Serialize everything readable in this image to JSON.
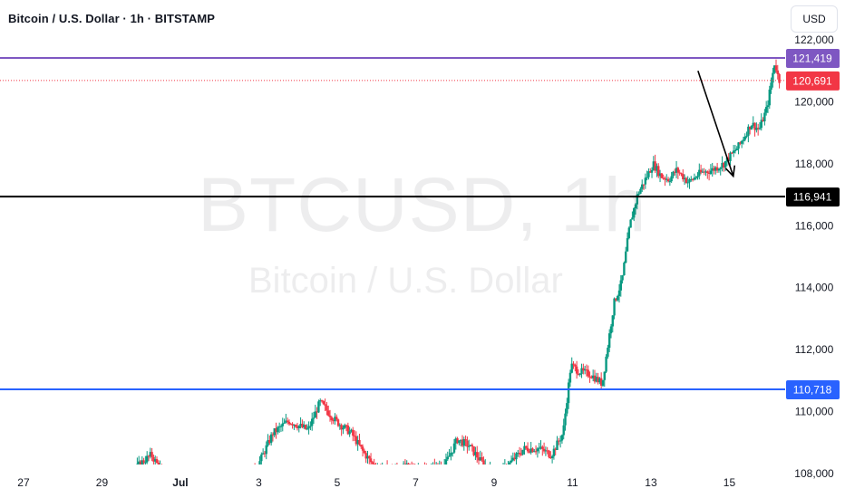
{
  "header": {
    "symbol_title": "Bitcoin / U.S. Dollar · 1h · BITSTAMP",
    "currency_button": "USD"
  },
  "watermark": {
    "ticker": "BTCUSD, 1h",
    "name": "Bitcoin / U.S. Dollar"
  },
  "colors": {
    "up": "#089981",
    "down": "#f23645",
    "resistance_line": "#7e57c2",
    "current_price_line": "#f23645",
    "support_line": "#000000",
    "lower_line": "#2962ff"
  },
  "chart_data": {
    "type": "candlestick",
    "title": "Bitcoin / U.S. Dollar · 1h · BITSTAMP",
    "interval": "1h",
    "ylim": [
      107500,
      122500
    ],
    "y_ticks": [
      "108,000",
      "110,000",
      "112,000",
      "114,000",
      "116,000",
      "118,000",
      "120,000",
      "122,000"
    ],
    "x_ticks": [
      "27",
      "29",
      "Jul",
      "3",
      "5",
      "7",
      "9",
      "11",
      "13",
      "15"
    ],
    "x_range_days": [
      26.4,
      46.4
    ],
    "grid": false,
    "price_levels": [
      {
        "label": "121,419",
        "value": 121419,
        "style": "solid",
        "role": "resistance"
      },
      {
        "label": "120,691",
        "value": 120691,
        "style": "dotted",
        "role": "last-price"
      },
      {
        "label": "116,941",
        "value": 116941,
        "style": "solid",
        "role": "support"
      },
      {
        "label": "110,718",
        "value": 110718,
        "style": "solid",
        "role": "level"
      }
    ],
    "annotation": {
      "type": "arrow",
      "direction": "down",
      "from": {
        "day": 44.2,
        "price": 121000
      },
      "to": {
        "day": 45.1,
        "price": 117600
      }
    },
    "price_path": [
      [
        26.4,
        107800
      ],
      [
        26.8,
        108100
      ],
      [
        27.2,
        107900
      ],
      [
        27.6,
        107700
      ],
      [
        28.0,
        107650
      ],
      [
        28.5,
        107700
      ],
      [
        29.0,
        107750
      ],
      [
        29.3,
        107600
      ],
      [
        29.7,
        107800
      ],
      [
        30.0,
        108300
      ],
      [
        30.3,
        108600
      ],
      [
        30.6,
        108000
      ],
      [
        30.9,
        107700
      ],
      [
        31.2,
        107750
      ],
      [
        31.6,
        107700
      ],
      [
        32.0,
        107650
      ],
      [
        32.5,
        107600
      ],
      [
        33.0,
        108200
      ],
      [
        33.4,
        109300
      ],
      [
        33.8,
        109700
      ],
      [
        34.3,
        109400
      ],
      [
        34.6,
        110300
      ],
      [
        35.0,
        109700
      ],
      [
        35.4,
        109300
      ],
      [
        35.7,
        108700
      ],
      [
        36.0,
        108200
      ],
      [
        36.4,
        108100
      ],
      [
        36.8,
        108200
      ],
      [
        37.3,
        108100
      ],
      [
        37.8,
        108300
      ],
      [
        38.1,
        109100
      ],
      [
        38.4,
        108900
      ],
      [
        38.7,
        108400
      ],
      [
        39.1,
        107900
      ],
      [
        39.5,
        108400
      ],
      [
        39.8,
        108800
      ],
      [
        40.2,
        108800
      ],
      [
        40.5,
        108600
      ],
      [
        40.8,
        109300
      ],
      [
        41.0,
        111500
      ],
      [
        41.2,
        111300
      ],
      [
        41.5,
        111200
      ],
      [
        41.8,
        110900
      ],
      [
        42.1,
        113500
      ],
      [
        42.3,
        114200
      ],
      [
        42.5,
        116000
      ],
      [
        42.7,
        117000
      ],
      [
        42.9,
        117500
      ],
      [
        43.1,
        118000
      ],
      [
        43.3,
        117600
      ],
      [
        43.5,
        117500
      ],
      [
        43.7,
        117800
      ],
      [
        44.0,
        117400
      ],
      [
        44.3,
        117700
      ],
      [
        44.6,
        117800
      ],
      [
        44.9,
        118000
      ],
      [
        45.1,
        118300
      ],
      [
        45.3,
        118600
      ],
      [
        45.6,
        119300
      ],
      [
        45.8,
        119100
      ],
      [
        46.0,
        119800
      ],
      [
        46.2,
        121300
      ],
      [
        46.3,
        120700
      ]
    ]
  }
}
